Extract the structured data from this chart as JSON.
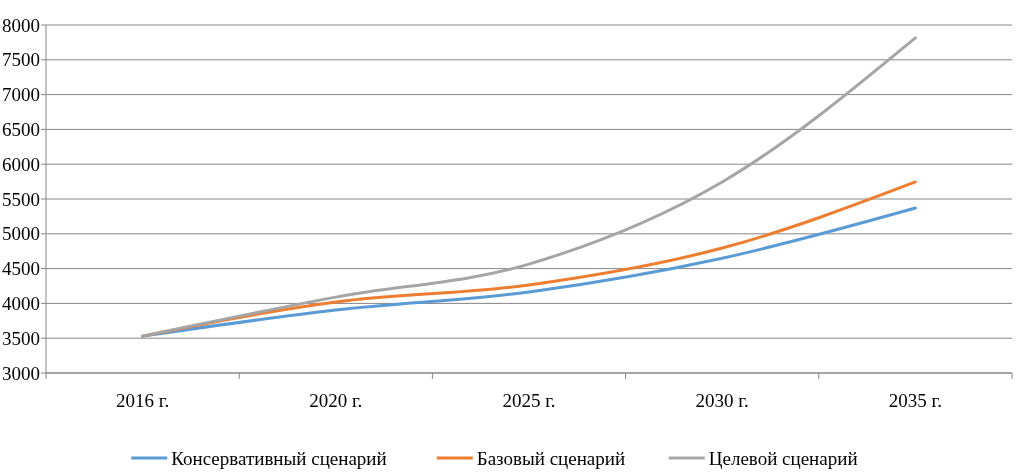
{
  "chart_data": {
    "type": "line",
    "categories": [
      "2016 г.",
      "2020 г.",
      "2025 г.",
      "2030 г.",
      "2035 г."
    ],
    "series": [
      {
        "name": "Консервативный сценарий",
        "color": "#5b9bd5",
        "values": [
          3530,
          3905,
          4165,
          4650,
          5370
        ]
      },
      {
        "name": "Базовый сценарий",
        "color": "#ed7d31",
        "values": [
          3530,
          4020,
          4265,
          4795,
          5745
        ]
      },
      {
        "name": "Целевой сценарий",
        "color": "#a5a5a5",
        "values": [
          3530,
          4090,
          4565,
          5745,
          7815
        ]
      }
    ],
    "ylim": [
      3000,
      8000
    ],
    "yticks": [
      3000,
      3500,
      4000,
      4500,
      5000,
      5500,
      6000,
      6500,
      7000,
      7500,
      8000
    ],
    "grid": "y",
    "legend": "bottom",
    "marker": "none",
    "line_style": "solid"
  }
}
